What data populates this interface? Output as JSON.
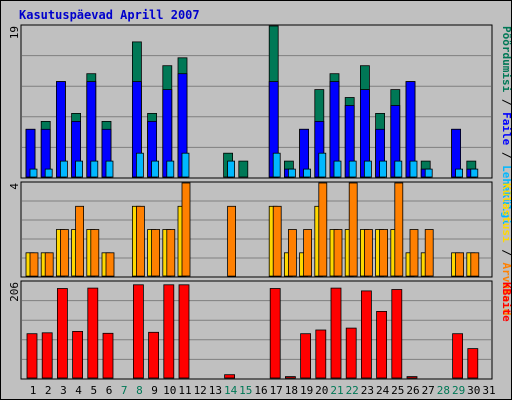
{
  "title": "Kasutuspäevad Aprill 2007",
  "colors": {
    "background": "#C0C0C0",
    "title": "#0000CC",
    "pages_bar": "#007856",
    "files_bar": "#0000FF",
    "hits_bar": "#00B8FF",
    "visits_bar": "#FFD800",
    "sites_bar": "#FF8000",
    "kbytes_bar": "#FF0000",
    "weekend_label": "#007856",
    "weekday_label": "#000000",
    "legend_sep": "#000000"
  },
  "chart_data": [
    {
      "type": "bar",
      "panel": "top",
      "ymax_label": "19",
      "ylim": [
        0,
        19
      ],
      "legend": [
        {
          "label": "Pöördumisi",
          "color": "#007856"
        },
        {
          "label": "Faile",
          "color": "#0000FF"
        },
        {
          "label": "Lehekülgi",
          "color": "#00B8FF"
        }
      ],
      "categories": [
        "1",
        "2",
        "3",
        "4",
        "5",
        "6",
        "7",
        "8",
        "9",
        "10",
        "11",
        "12",
        "13",
        "14",
        "15",
        "16",
        "17",
        "18",
        "19",
        "20",
        "21",
        "22",
        "23",
        "24",
        "25",
        "26",
        "27",
        "28",
        "29",
        "30",
        "31"
      ],
      "series": [
        {
          "name": "Pöördumisi",
          "values": [
            6,
            7,
            12,
            8,
            13,
            7,
            0,
            17,
            8,
            14,
            15,
            0,
            0,
            3,
            2,
            0,
            19,
            2,
            6,
            11,
            13,
            10,
            14,
            8,
            11,
            12,
            2,
            0,
            6,
            2,
            0
          ]
        },
        {
          "name": "Faile",
          "values": [
            6,
            6,
            12,
            7,
            12,
            6,
            0,
            12,
            7,
            11,
            13,
            0,
            0,
            0,
            0,
            0,
            12,
            1,
            6,
            7,
            12,
            9,
            11,
            6,
            9,
            12,
            1,
            0,
            6,
            1,
            0
          ]
        },
        {
          "name": "Lehekülgi",
          "values": [
            1,
            1,
            2,
            2,
            2,
            2,
            0,
            3,
            2,
            2,
            3,
            0,
            0,
            2,
            0,
            0,
            3,
            1,
            1,
            3,
            2,
            2,
            2,
            2,
            2,
            2,
            1,
            0,
            1,
            1,
            0
          ]
        }
      ]
    },
    {
      "type": "bar",
      "panel": "middle",
      "ymax_label": "4",
      "ylim": [
        0,
        4
      ],
      "legend": [
        {
          "label": "Külastusi",
          "color": "#FFD800"
        },
        {
          "label": "Arvuteid",
          "color": "#FF8000"
        }
      ],
      "categories": [
        "1",
        "2",
        "3",
        "4",
        "5",
        "6",
        "7",
        "8",
        "9",
        "10",
        "11",
        "12",
        "13",
        "14",
        "15",
        "16",
        "17",
        "18",
        "19",
        "20",
        "21",
        "22",
        "23",
        "24",
        "25",
        "26",
        "27",
        "28",
        "29",
        "30",
        "31"
      ],
      "series": [
        {
          "name": "Külastusi",
          "values": [
            1,
            1,
            2,
            2,
            2,
            1,
            0,
            3,
            2,
            2,
            3,
            0,
            0,
            0,
            0,
            0,
            3,
            1,
            1,
            3,
            2,
            2,
            2,
            2,
            2,
            1,
            1,
            0,
            1,
            1,
            0
          ]
        },
        {
          "name": "Arvuteid",
          "values": [
            1,
            1,
            2,
            3,
            2,
            1,
            0,
            3,
            2,
            2,
            4,
            0,
            0,
            3,
            0,
            0,
            3,
            2,
            2,
            4,
            2,
            4,
            2,
            2,
            4,
            2,
            2,
            0,
            1,
            1,
            0
          ]
        }
      ]
    },
    {
      "type": "bar",
      "panel": "bottom",
      "ymax_label": "206",
      "ylim": [
        0,
        206
      ],
      "legend": [
        {
          "label": "KBaite",
          "color": "#FF0000"
        }
      ],
      "categories": [
        "1",
        "2",
        "3",
        "4",
        "5",
        "6",
        "7",
        "8",
        "9",
        "10",
        "11",
        "12",
        "13",
        "14",
        "15",
        "16",
        "17",
        "18",
        "19",
        "20",
        "21",
        "22",
        "23",
        "24",
        "25",
        "26",
        "27",
        "28",
        "29",
        "30",
        "31"
      ],
      "series": [
        {
          "name": "KBaite",
          "values": [
            95,
            97,
            192,
            100,
            193,
            96,
            0,
            200,
            98,
            200,
            200,
            0,
            0,
            7,
            0,
            0,
            192,
            3,
            95,
            103,
            193,
            107,
            187,
            143,
            190,
            3,
            0,
            0,
            95,
            63,
            0
          ]
        }
      ]
    }
  ],
  "x_axis": {
    "labels": [
      "1",
      "2",
      "3",
      "4",
      "5",
      "6",
      "7",
      "8",
      "9",
      "10",
      "11",
      "12",
      "13",
      "14",
      "15",
      "16",
      "17",
      "18",
      "19",
      "20",
      "21",
      "22",
      "23",
      "24",
      "25",
      "26",
      "27",
      "28",
      "29",
      "30",
      "31"
    ],
    "weekend": [
      false,
      false,
      false,
      false,
      false,
      false,
      true,
      true,
      false,
      false,
      false,
      false,
      false,
      true,
      true,
      false,
      false,
      false,
      false,
      false,
      true,
      true,
      false,
      false,
      false,
      false,
      false,
      true,
      true,
      false,
      false
    ]
  }
}
